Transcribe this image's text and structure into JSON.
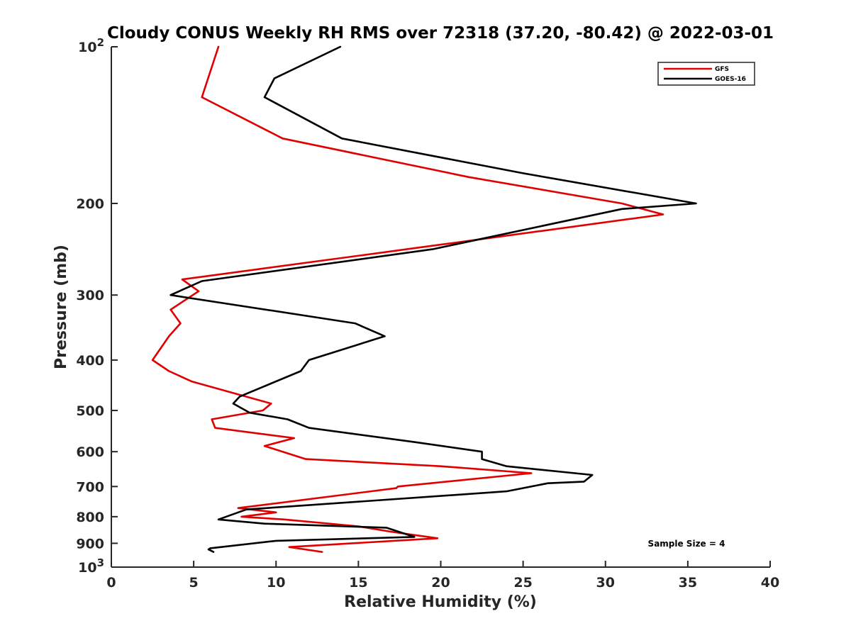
{
  "chart_data": {
    "type": "line",
    "title": "Cloudy CONUS Weekly RH RMS over 72318 (37.20, -80.42) @ 2022-03-01",
    "xlabel": "Relative Humidity (%)",
    "ylabel": "Pressure (mb)",
    "xlim": [
      0,
      40
    ],
    "ylim": [
      100,
      1000
    ],
    "y_scale": "log",
    "y_reversed": true,
    "grid": false,
    "legend_position": "top-right",
    "x_ticks": [
      {
        "value": 0,
        "label": "0"
      },
      {
        "value": 5,
        "label": "5"
      },
      {
        "value": 10,
        "label": "10"
      },
      {
        "value": 15,
        "label": "15"
      },
      {
        "value": 20,
        "label": "20"
      },
      {
        "value": 25,
        "label": "25"
      },
      {
        "value": 30,
        "label": "30"
      },
      {
        "value": 35,
        "label": "35"
      },
      {
        "value": 40,
        "label": "40"
      }
    ],
    "y_ticks": [
      {
        "value": 100,
        "base": "10",
        "exp": "2"
      },
      {
        "value": 200,
        "label": "200"
      },
      {
        "value": 300,
        "label": "300"
      },
      {
        "value": 400,
        "label": "400"
      },
      {
        "value": 500,
        "label": "500"
      },
      {
        "value": 600,
        "label": "600"
      },
      {
        "value": 700,
        "label": "700"
      },
      {
        "value": 800,
        "label": "800"
      },
      {
        "value": 900,
        "label": "900"
      },
      {
        "value": 1000,
        "base": "10",
        "exp": "3"
      }
    ],
    "series": [
      {
        "name": "GFS",
        "color": "#e00000",
        "points": [
          [
            6.5,
            100
          ],
          [
            5.5,
            125
          ],
          [
            10.4,
            150
          ],
          [
            21.7,
            178
          ],
          [
            31.0,
            200
          ],
          [
            33.5,
            210
          ],
          [
            20.0,
            240
          ],
          [
            4.3,
            280
          ],
          [
            5.3,
            295
          ],
          [
            3.6,
            320
          ],
          [
            4.2,
            340
          ],
          [
            3.5,
            360
          ],
          [
            2.5,
            400
          ],
          [
            3.5,
            420
          ],
          [
            4.9,
            440
          ],
          [
            9.7,
            485
          ],
          [
            9.2,
            500
          ],
          [
            6.1,
            520
          ],
          [
            6.3,
            540
          ],
          [
            11.1,
            565
          ],
          [
            9.3,
            585
          ],
          [
            11.8,
            620
          ],
          [
            20.0,
            640
          ],
          [
            25.5,
            660
          ],
          [
            17.4,
            700
          ],
          [
            17.3,
            705
          ],
          [
            7.7,
            770
          ],
          [
            10.0,
            785
          ],
          [
            7.9,
            800
          ],
          [
            10.5,
            810
          ],
          [
            15.0,
            835
          ],
          [
            17.0,
            855
          ],
          [
            19.8,
            880
          ],
          [
            10.8,
            915
          ],
          [
            12.8,
            935
          ]
        ]
      },
      {
        "name": "GOES-16",
        "color": "#000000",
        "points": [
          [
            13.9,
            100
          ],
          [
            9.9,
            115
          ],
          [
            9.3,
            125
          ],
          [
            14.0,
            150
          ],
          [
            25.0,
            175
          ],
          [
            35.5,
            200
          ],
          [
            31.0,
            205
          ],
          [
            19.5,
            245
          ],
          [
            5.5,
            282
          ],
          [
            3.6,
            300
          ],
          [
            14.8,
            340
          ],
          [
            16.6,
            360
          ],
          [
            12.0,
            400
          ],
          [
            11.5,
            420
          ],
          [
            7.8,
            470
          ],
          [
            7.4,
            485
          ],
          [
            8.4,
            505
          ],
          [
            10.7,
            520
          ],
          [
            12.0,
            540
          ],
          [
            18.4,
            575
          ],
          [
            22.5,
            600
          ],
          [
            22.5,
            620
          ],
          [
            24.0,
            640
          ],
          [
            29.2,
            665
          ],
          [
            28.7,
            685
          ],
          [
            26.5,
            690
          ],
          [
            24.0,
            715
          ],
          [
            8.2,
            775
          ],
          [
            6.5,
            810
          ],
          [
            9.3,
            825
          ],
          [
            16.7,
            840
          ],
          [
            18.4,
            875
          ],
          [
            10.0,
            890
          ],
          [
            6.0,
            920
          ],
          [
            5.9,
            925
          ],
          [
            6.2,
            935
          ]
        ]
      }
    ],
    "annotations": [
      {
        "text": "Sample Size = 4"
      }
    ]
  }
}
